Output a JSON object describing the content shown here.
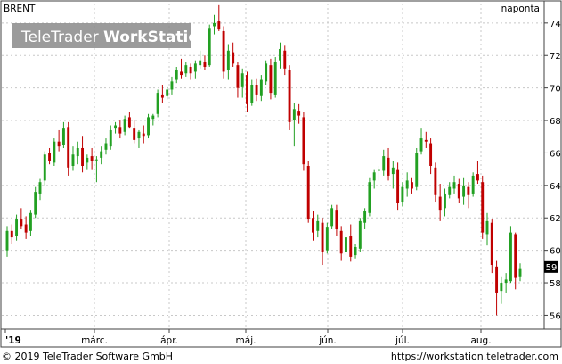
{
  "header": {
    "symbol": "BRENT",
    "interval": "naponta",
    "brand_plain": "TeleTrader ",
    "brand_bold": "WorkStation"
  },
  "footer": {
    "copyright": "© 2019 TeleTrader Software GmbH",
    "url": "https://workstation.teletrader.com"
  },
  "last_price_label": "59",
  "colors": {
    "up": "#22a022",
    "down": "#c00000",
    "header_green": "#2e8b2e",
    "grid": "#c8c8c8",
    "frame": "#404040",
    "last_price_bg": "#000000"
  },
  "chart_data": {
    "type": "candlestick",
    "x_tick_labels": [
      "'19",
      "márc.",
      "ápr.",
      "máj.",
      "jún.",
      "júl.",
      "aug."
    ],
    "y_tick_labels": [
      "56",
      "58",
      "60",
      "62",
      "64",
      "66",
      "68",
      "70",
      "72",
      "74"
    ],
    "ylim": [
      55.2,
      75.2
    ],
    "grid": true,
    "last_price": 59,
    "ohlc": [
      [
        60.0,
        61.5,
        59.6,
        61.2
      ],
      [
        61.2,
        61.6,
        60.4,
        60.8
      ],
      [
        60.9,
        62.2,
        60.6,
        61.9
      ],
      [
        61.9,
        62.6,
        61.3,
        61.5
      ],
      [
        61.6,
        62.1,
        60.7,
        61.1
      ],
      [
        61.2,
        62.5,
        60.9,
        62.3
      ],
      [
        62.2,
        63.9,
        62.0,
        63.6
      ],
      [
        63.5,
        64.4,
        63.1,
        64.2
      ],
      [
        64.3,
        66.1,
        64.0,
        65.9
      ],
      [
        66.0,
        66.3,
        65.3,
        65.5
      ],
      [
        65.4,
        66.9,
        65.2,
        66.7
      ],
      [
        66.7,
        67.4,
        66.1,
        66.4
      ],
      [
        66.5,
        67.9,
        66.3,
        67.5
      ],
      [
        67.6,
        67.9,
        64.6,
        65.1
      ],
      [
        65.2,
        66.4,
        64.9,
        65.9
      ],
      [
        65.8,
        66.7,
        65.3,
        66.3
      ],
      [
        66.3,
        67.0,
        64.8,
        65.2
      ],
      [
        65.4,
        65.9,
        65.0,
        65.7
      ],
      [
        65.8,
        66.3,
        65.0,
        65.5
      ],
      [
        65.6,
        65.8,
        64.2,
        65.6
      ],
      [
        65.7,
        66.4,
        65.3,
        66.1
      ],
      [
        66.2,
        66.9,
        65.9,
        66.6
      ],
      [
        66.4,
        67.7,
        66.2,
        67.4
      ],
      [
        67.5,
        67.9,
        67.2,
        67.7
      ],
      [
        67.6,
        68.0,
        66.9,
        67.2
      ],
      [
        67.3,
        68.3,
        67.1,
        68.1
      ],
      [
        68.2,
        68.5,
        67.5,
        67.6
      ],
      [
        67.5,
        68.0,
        66.6,
        66.8
      ],
      [
        66.9,
        67.4,
        66.3,
        67.3
      ],
      [
        67.2,
        67.7,
        66.6,
        67.0
      ],
      [
        67.1,
        68.4,
        66.9,
        68.2
      ],
      [
        68.1,
        68.4,
        67.7,
        68.3
      ],
      [
        68.4,
        69.9,
        68.2,
        69.7
      ],
      [
        69.6,
        70.2,
        69.1,
        69.4
      ],
      [
        69.5,
        70.1,
        69.3,
        69.9
      ],
      [
        69.9,
        70.7,
        69.6,
        70.4
      ],
      [
        70.5,
        71.3,
        70.3,
        71.1
      ],
      [
        71.0,
        71.8,
        70.6,
        70.8
      ],
      [
        70.9,
        71.6,
        70.7,
        71.4
      ],
      [
        71.3,
        71.5,
        70.5,
        70.9
      ],
      [
        71.0,
        71.7,
        70.6,
        71.5
      ],
      [
        71.4,
        72.3,
        71.2,
        71.7
      ],
      [
        71.6,
        72.0,
        71.1,
        71.3
      ],
      [
        71.4,
        73.9,
        71.3,
        73.7
      ],
      [
        73.8,
        74.5,
        73.3,
        74.0
      ],
      [
        74.1,
        75.1,
        73.5,
        73.6
      ],
      [
        73.5,
        73.8,
        70.6,
        71.0
      ],
      [
        71.1,
        72.7,
        70.5,
        72.3
      ],
      [
        72.2,
        72.8,
        71.3,
        71.5
      ],
      [
        71.4,
        71.6,
        69.4,
        70.0
      ],
      [
        70.1,
        71.2,
        69.4,
        70.9
      ],
      [
        70.8,
        71.0,
        68.5,
        69.0
      ],
      [
        69.1,
        70.5,
        68.9,
        70.2
      ],
      [
        70.2,
        70.6,
        69.2,
        69.6
      ],
      [
        69.5,
        70.8,
        69.2,
        70.5
      ],
      [
        70.4,
        71.7,
        70.2,
        71.5
      ],
      [
        71.4,
        71.8,
        69.3,
        69.7
      ],
      [
        69.6,
        71.9,
        69.4,
        71.6
      ],
      [
        71.7,
        72.8,
        71.2,
        72.4
      ],
      [
        72.3,
        72.6,
        70.8,
        71.2
      ],
      [
        71.1,
        71.4,
        67.4,
        67.9
      ],
      [
        68.0,
        69.1,
        66.4,
        68.7
      ],
      [
        68.6,
        69.0,
        67.8,
        68.3
      ],
      [
        68.2,
        68.5,
        64.9,
        65.3
      ],
      [
        65.2,
        65.5,
        61.7,
        61.9
      ],
      [
        62.0,
        62.4,
        60.6,
        61.1
      ],
      [
        61.2,
        62.2,
        60.8,
        61.8
      ],
      [
        61.7,
        62.0,
        59.1,
        59.9
      ],
      [
        60.0,
        61.7,
        59.8,
        61.4
      ],
      [
        61.5,
        62.8,
        61.3,
        62.6
      ],
      [
        62.5,
        62.8,
        60.9,
        61.3
      ],
      [
        61.2,
        61.5,
        59.4,
        59.8
      ],
      [
        59.9,
        61.1,
        59.7,
        60.8
      ],
      [
        60.9,
        61.6,
        59.3,
        59.6
      ],
      [
        59.7,
        60.4,
        59.5,
        60.2
      ],
      [
        60.1,
        62.0,
        59.9,
        61.8
      ],
      [
        61.7,
        62.6,
        61.3,
        62.4
      ],
      [
        62.3,
        64.5,
        62.1,
        64.2
      ],
      [
        64.3,
        65.0,
        63.8,
        64.8
      ],
      [
        64.9,
        65.2,
        64.3,
        65.0
      ],
      [
        64.9,
        66.2,
        64.6,
        65.8
      ],
      [
        65.7,
        66.3,
        64.3,
        64.6
      ],
      [
        64.7,
        65.5,
        63.8,
        65.1
      ],
      [
        65.0,
        65.4,
        62.5,
        62.9
      ],
      [
        63.0,
        64.2,
        62.7,
        63.9
      ],
      [
        63.8,
        64.8,
        63.3,
        64.3
      ],
      [
        64.2,
        64.5,
        63.5,
        63.8
      ],
      [
        63.9,
        66.3,
        63.7,
        66.0
      ],
      [
        66.1,
        67.5,
        65.9,
        66.9
      ],
      [
        66.8,
        67.3,
        66.3,
        66.7
      ],
      [
        66.6,
        66.9,
        64.7,
        65.2
      ],
      [
        65.1,
        65.4,
        63.0,
        63.4
      ],
      [
        63.3,
        64.1,
        61.8,
        62.5
      ],
      [
        62.6,
        63.8,
        62.1,
        63.5
      ],
      [
        63.4,
        64.2,
        63.2,
        63.9
      ],
      [
        63.8,
        64.6,
        63.5,
        64.2
      ],
      [
        64.1,
        64.4,
        62.9,
        63.2
      ],
      [
        63.3,
        64.5,
        62.8,
        64.0
      ],
      [
        63.9,
        64.2,
        62.6,
        63.4
      ],
      [
        63.5,
        64.8,
        63.3,
        64.6
      ],
      [
        64.7,
        65.5,
        64.1,
        64.3
      ],
      [
        64.2,
        64.6,
        60.7,
        61.1
      ],
      [
        61.0,
        62.3,
        60.3,
        61.8
      ],
      [
        61.7,
        61.9,
        58.6,
        59.1
      ],
      [
        59.0,
        59.4,
        56.0,
        57.4
      ],
      [
        57.5,
        58.4,
        56.7,
        58.0
      ],
      [
        58.0,
        58.6,
        57.4,
        58.2
      ],
      [
        58.1,
        61.5,
        58.0,
        61.1
      ],
      [
        61.0,
        61.1,
        57.6,
        58.3
      ],
      [
        58.4,
        59.2,
        58.1,
        58.9
      ]
    ]
  }
}
